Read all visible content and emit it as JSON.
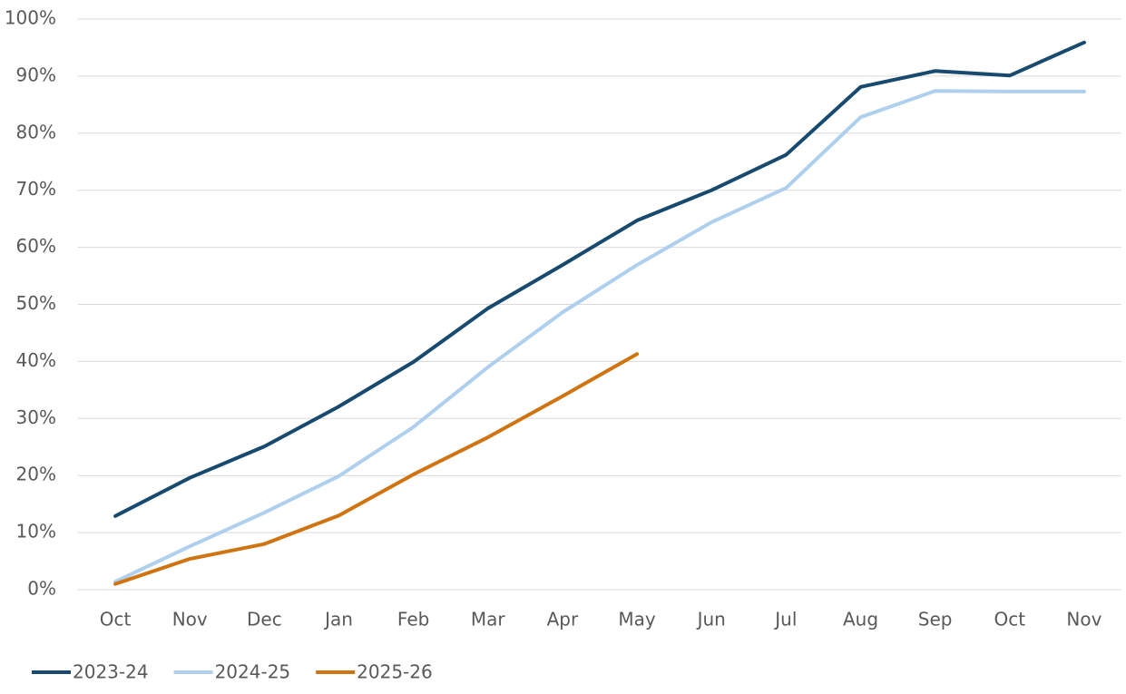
{
  "chart_data": {
    "type": "line",
    "categories": [
      "Oct",
      "Nov",
      "Dec",
      "Jan",
      "Feb",
      "Mar",
      "Apr",
      "May",
      "Jun",
      "Jul",
      "Aug",
      "Sep",
      "Oct",
      "Nov"
    ],
    "series": [
      {
        "name": "2023-24",
        "color": "#174a6e",
        "values": [
          12.9,
          19.6,
          25.1,
          32.1,
          39.9,
          49.3,
          56.9,
          64.7,
          70.0,
          76.2,
          88.1,
          90.9,
          90.1,
          95.9
        ]
      },
      {
        "name": "2024-25",
        "color": "#aed0ee",
        "values": [
          1.4,
          7.6,
          13.5,
          19.9,
          28.5,
          39.0,
          48.6,
          56.9,
          64.4,
          70.4,
          82.8,
          87.4,
          87.3,
          87.3
        ]
      },
      {
        "name": "2025-26",
        "color": "#d07412",
        "values": [
          1.0,
          5.4,
          8.0,
          13.0,
          20.2,
          26.7,
          33.9,
          41.3,
          null,
          null,
          null,
          null,
          null,
          null
        ]
      }
    ],
    "ylim": [
      0,
      100
    ],
    "yticks": [
      {
        "value": 0,
        "label": "0%"
      },
      {
        "value": 10,
        "label": "10%"
      },
      {
        "value": 20,
        "label": "20%"
      },
      {
        "value": 30,
        "label": "30%"
      },
      {
        "value": 40,
        "label": "40%"
      },
      {
        "value": 50,
        "label": "50%"
      },
      {
        "value": 60,
        "label": "60%"
      },
      {
        "value": 70,
        "label": "70%"
      },
      {
        "value": 80,
        "label": "80%"
      },
      {
        "value": 90,
        "label": "90%"
      },
      {
        "value": 100,
        "label": "100%"
      }
    ],
    "grid": true,
    "legend": "bottom-left"
  }
}
